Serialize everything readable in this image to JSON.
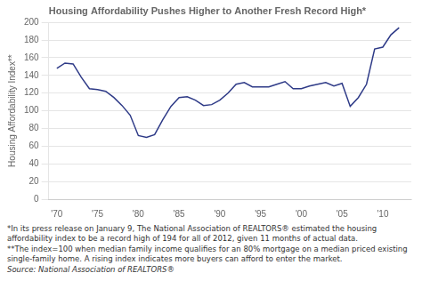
{
  "chart_data": {
    "type": "line",
    "title": "Housing Affordability Pushes Higher to Another Fresh Record High*",
    "ylabel": "Housing Affordability Index**",
    "annotations": [
      "*In its press release on January 9, The National Association of REALTORS® estimated the housing affordability index to be a record high of 194 for all of 2012, given 11 months of actual data.",
      "**The index=100 when median family income qualifies for an 80% mortgage on a median priced existing single-family home. A rising index indicates more buyers can afford to enter the market.",
      "Source: National Association of REALTORS®"
    ],
    "color": "#2E3A87",
    "grid": "y",
    "xlim": [
      1969,
      2013.5
    ],
    "xticks": [
      {
        "value": 1970,
        "label": "'70"
      },
      {
        "value": 1975,
        "label": "'75"
      },
      {
        "value": 1980,
        "label": "'80"
      },
      {
        "value": 1985,
        "label": "'85"
      },
      {
        "value": 1990,
        "label": "'90"
      },
      {
        "value": 1995,
        "label": "'95"
      },
      {
        "value": 2000,
        "label": "'00"
      },
      {
        "value": 2005,
        "label": "'05"
      },
      {
        "value": 2010,
        "label": "'10"
      }
    ],
    "ylim": [
      0,
      200
    ],
    "yticks": [
      0,
      20,
      40,
      60,
      80,
      100,
      120,
      140,
      160,
      180,
      200
    ],
    "x": [
      1970,
      1971,
      1972,
      1973,
      1974,
      1975,
      1976,
      1977,
      1978,
      1979,
      1980,
      1981,
      1982,
      1983,
      1984,
      1985,
      1986,
      1987,
      1988,
      1989,
      1990,
      1991,
      1992,
      1993,
      1994,
      1995,
      1996,
      1997,
      1998,
      1999,
      2000,
      2001,
      2002,
      2003,
      2004,
      2005,
      2006,
      2007,
      2008,
      2009,
      2010,
      2011,
      2012
    ],
    "values": [
      148,
      154,
      153,
      138,
      125,
      124,
      122,
      115,
      106,
      95,
      72,
      70,
      73,
      90,
      105,
      115,
      116,
      112,
      106,
      107,
      112,
      120,
      130,
      132,
      127,
      127,
      127,
      130,
      133,
      125,
      125,
      128,
      130,
      132,
      128,
      131,
      105,
      115,
      130,
      170,
      172,
      186,
      194
    ]
  }
}
